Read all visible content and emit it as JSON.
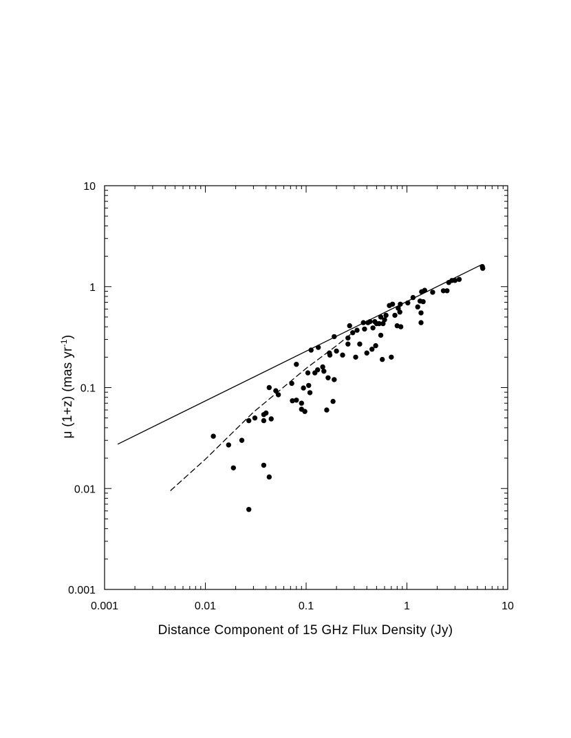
{
  "chart_data": {
    "type": "scatter",
    "title": "",
    "xlabel": "Distance Component of 15 GHz Flux Density (Jy)",
    "ylabel": {
      "prefix": "μ (1+z) (mas yr",
      "superscript": "-1",
      "suffix": ")"
    },
    "xscale": "log",
    "yscale": "log",
    "xlim": [
      0.001,
      10
    ],
    "ylim": [
      0.001,
      10
    ],
    "x_tick_labels": [
      "0.001",
      "0.01",
      "0.1",
      "1",
      "10"
    ],
    "y_tick_labels": [
      "0.001",
      "0.01",
      "0.1",
      "1",
      "10"
    ],
    "grid": false,
    "legend": "none",
    "colors": {
      "points": "#000000",
      "lines": "#000000"
    },
    "series": [
      {
        "mode": "markers",
        "points": [
          [
            0.012,
            0.033
          ],
          [
            0.017,
            0.027
          ],
          [
            0.019,
            0.016
          ],
          [
            0.023,
            0.03
          ],
          [
            0.027,
            0.047
          ],
          [
            0.027,
            0.0062
          ],
          [
            0.031,
            0.05
          ],
          [
            0.038,
            0.047
          ],
          [
            0.038,
            0.054
          ],
          [
            0.038,
            0.017
          ],
          [
            0.04,
            0.056
          ],
          [
            0.043,
            0.1
          ],
          [
            0.043,
            0.013
          ],
          [
            0.045,
            0.049
          ],
          [
            0.05,
            0.093
          ],
          [
            0.053,
            0.085
          ],
          [
            0.072,
            0.11
          ],
          [
            0.073,
            0.074
          ],
          [
            0.08,
            0.075
          ],
          [
            0.08,
            0.17
          ],
          [
            0.09,
            0.061
          ],
          [
            0.09,
            0.07
          ],
          [
            0.094,
            0.099
          ],
          [
            0.097,
            0.058
          ],
          [
            0.104,
            0.14
          ],
          [
            0.106,
            0.105
          ],
          [
            0.109,
            0.089
          ],
          [
            0.112,
            0.235
          ],
          [
            0.122,
            0.14
          ],
          [
            0.13,
            0.15
          ],
          [
            0.132,
            0.25
          ],
          [
            0.146,
            0.16
          ],
          [
            0.15,
            0.145
          ],
          [
            0.16,
            0.06
          ],
          [
            0.165,
            0.125
          ],
          [
            0.17,
            0.22
          ],
          [
            0.172,
            0.21
          ],
          [
            0.185,
            0.073
          ],
          [
            0.19,
            0.12
          ],
          [
            0.19,
            0.32
          ],
          [
            0.2,
            0.23
          ],
          [
            0.23,
            0.21
          ],
          [
            0.26,
            0.27
          ],
          [
            0.26,
            0.31
          ],
          [
            0.27,
            0.41
          ],
          [
            0.29,
            0.35
          ],
          [
            0.31,
            0.2
          ],
          [
            0.32,
            0.37
          ],
          [
            0.34,
            0.27
          ],
          [
            0.37,
            0.44
          ],
          [
            0.38,
            0.38
          ],
          [
            0.4,
            0.22
          ],
          [
            0.41,
            0.44
          ],
          [
            0.43,
            0.45
          ],
          [
            0.45,
            0.24
          ],
          [
            0.46,
            0.39
          ],
          [
            0.48,
            0.45
          ],
          [
            0.49,
            0.26
          ],
          [
            0.5,
            0.43
          ],
          [
            0.53,
            0.43
          ],
          [
            0.55,
            0.33
          ],
          [
            0.55,
            0.5
          ],
          [
            0.57,
            0.19
          ],
          [
            0.58,
            0.43
          ],
          [
            0.6,
            0.47
          ],
          [
            0.62,
            0.52
          ],
          [
            0.67,
            0.65
          ],
          [
            0.7,
            0.2
          ],
          [
            0.72,
            0.67
          ],
          [
            0.76,
            0.52
          ],
          [
            0.8,
            0.41
          ],
          [
            0.82,
            0.61
          ],
          [
            0.85,
            0.56
          ],
          [
            0.86,
            0.67
          ],
          [
            0.87,
            0.4
          ],
          [
            1.02,
            0.69
          ],
          [
            1.15,
            0.78
          ],
          [
            1.28,
            0.63
          ],
          [
            1.35,
            0.72
          ],
          [
            1.38,
            0.44
          ],
          [
            1.38,
            0.55
          ],
          [
            1.4,
            0.89
          ],
          [
            1.45,
            0.71
          ],
          [
            1.5,
            0.92
          ],
          [
            1.8,
            0.88
          ],
          [
            2.3,
            0.91
          ],
          [
            2.5,
            0.91
          ],
          [
            2.6,
            1.1
          ],
          [
            2.8,
            1.15
          ],
          [
            3.0,
            1.15
          ],
          [
            3.3,
            1.18
          ],
          [
            5.6,
            1.58
          ],
          [
            5.65,
            1.52
          ]
        ]
      },
      {
        "mode": "line",
        "dash": "solid",
        "points": [
          [
            0.00135,
            0.0275
          ],
          [
            5.5,
            1.65
          ]
        ]
      },
      {
        "mode": "line",
        "dash": "dashed",
        "points": [
          [
            0.0045,
            0.0095
          ],
          [
            0.01,
            0.0195
          ],
          [
            0.03,
            0.057
          ],
          [
            0.1,
            0.155
          ],
          [
            0.2,
            0.26
          ],
          [
            0.3,
            0.36
          ]
        ]
      }
    ]
  }
}
